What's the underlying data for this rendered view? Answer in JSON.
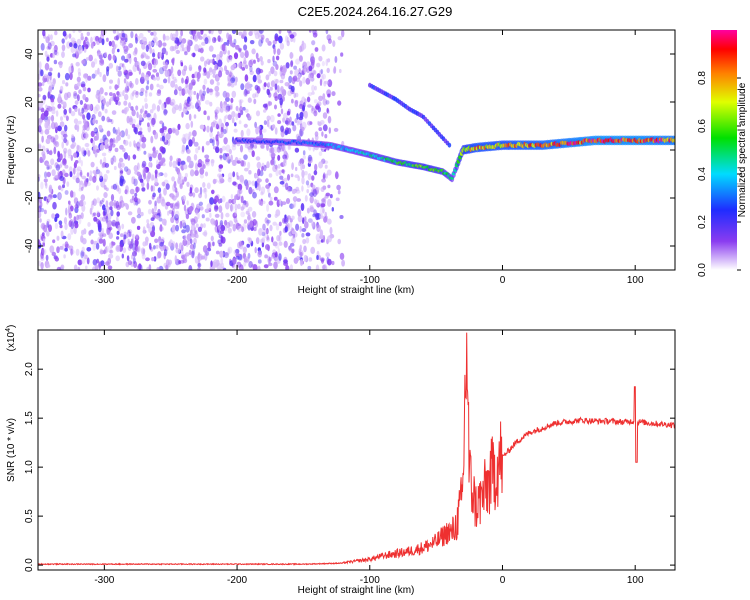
{
  "title": "C2E5.2024.264.16.27.G29",
  "chart_data": [
    {
      "type": "heatmap",
      "xlabel": "Height of straight line (km)",
      "ylabel": "Frequency (Hz)",
      "xlim": [
        -350,
        130
      ],
      "ylim": [
        -50,
        50
      ],
      "x_ticks": [
        -300,
        -200,
        -100,
        0,
        100
      ],
      "y_ticks": [
        -40,
        -20,
        0,
        20,
        40
      ],
      "colorbar": {
        "label": "Normalized spectral amplitude",
        "range": [
          0,
          1
        ],
        "ticks": [
          0.0,
          0.2,
          0.4,
          0.6,
          0.8
        ],
        "tick_labels": [
          "0.0",
          "0.2",
          "0.4",
          "0.6",
          "0.8"
        ]
      },
      "ridge": {
        "x": [
          -200,
          -150,
          -130,
          -100,
          -80,
          -60,
          -45,
          -38,
          -30,
          -20,
          0,
          30,
          70,
          100,
          130
        ],
        "y": [
          4,
          3,
          2,
          -2,
          -5,
          -7,
          -9,
          -12,
          0,
          1,
          2,
          2,
          4,
          4,
          4
        ],
        "amplitude": [
          0.25,
          0.3,
          0.35,
          0.45,
          0.55,
          0.6,
          0.55,
          0.45,
          0.7,
          0.8,
          0.8,
          0.85,
          0.95,
          0.95,
          0.9
        ]
      },
      "branch": {
        "x": [
          -100,
          -80,
          -70,
          -60,
          -50,
          -40
        ],
        "y": [
          27,
          21,
          17,
          14,
          8,
          2
        ]
      },
      "colors": {
        "low": "#c9a8f0",
        "mid": "#6f1fe0",
        "high": "#ff0000"
      }
    },
    {
      "type": "line",
      "xlabel": "Height of straight line (km)",
      "ylabel": "SNR (10 * v/v)",
      "y_multiplier": "(x10",
      "y_multiplier_exp": "4",
      "xlim": [
        -350,
        130
      ],
      "ylim": [
        -0.05,
        2.4
      ],
      "x_ticks": [
        -300,
        -200,
        -100,
        0,
        100
      ],
      "y_ticks": [
        0.0,
        0.5,
        1.0,
        1.5,
        2.0
      ],
      "y_tick_labels": [
        "0.0",
        "0.5",
        "1.0",
        "1.5",
        "2.0"
      ],
      "series": [
        {
          "x": [
            -350,
            -150,
            -120,
            -100,
            -90,
            -80,
            -70,
            -60,
            -50,
            -40,
            -35,
            -30,
            -27,
            -25,
            -20,
            -15,
            -10,
            -5,
            0,
            10,
            20,
            30,
            40,
            60,
            70,
            80,
            90,
            100,
            110,
            120,
            130
          ],
          "y": [
            0.01,
            0.01,
            0.02,
            0.05,
            0.08,
            0.1,
            0.12,
            0.15,
            0.2,
            0.3,
            0.4,
            0.7,
            2.35,
            0.9,
            0.6,
            0.7,
            0.85,
            1.0,
            1.1,
            1.25,
            1.35,
            1.4,
            1.45,
            1.48,
            1.47,
            1.47,
            1.46,
            1.47,
            1.45,
            1.44,
            1.43
          ],
          "color": "#ee3030"
        }
      ]
    }
  ]
}
